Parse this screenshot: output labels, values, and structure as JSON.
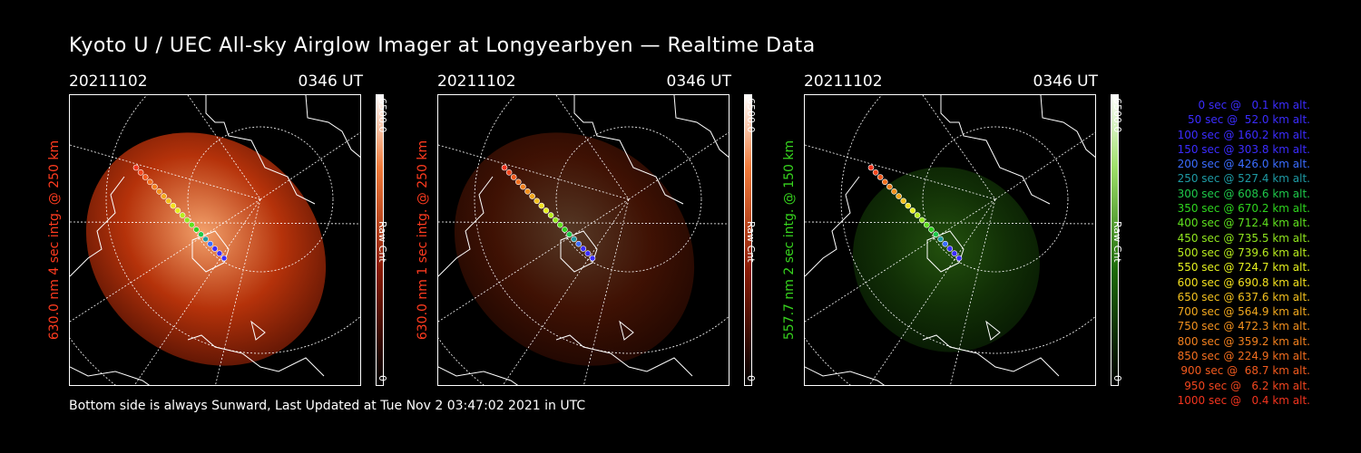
{
  "title": "Kyoto U / UEC All-sky Airglow Imager at Longyearbyen — Realtime Data",
  "footer": "Bottom side is always Sunward, Last Updated at Tue Nov  2 03:47:02 2021 in UTC",
  "panels": [
    {
      "date": "20211102",
      "time": "0346 UT",
      "ylabel": "630.0 nm 4 sec intg. @ 250 km",
      "ylabel_color": "#ff3b1f",
      "colorbar_max": "6500.0",
      "colorbar_min": "0",
      "colorbar_unit": "Raw Cnt",
      "scheme": "red",
      "brightness": "high"
    },
    {
      "date": "20211102",
      "time": "0346 UT",
      "ylabel": "630.0 nm 1 sec intg. @ 250 km",
      "ylabel_color": "#ff3b1f",
      "colorbar_max": "6500.0",
      "colorbar_min": "0",
      "colorbar_unit": "Raw Cnt",
      "scheme": "red",
      "brightness": "low"
    },
    {
      "date": "20211102",
      "time": "0346 UT",
      "ylabel": "557.7 nm 2 sec intg. @ 150 km",
      "ylabel_color": "#37d41e",
      "colorbar_max": "6500.0",
      "colorbar_min": "0",
      "colorbar_unit": "Raw Cnt",
      "scheme": "green",
      "brightness": "medium"
    }
  ],
  "legend": [
    {
      "text": "0 sec @   0.1 km alt.",
      "color": "#3b2cff"
    },
    {
      "text": "50 sec @  52.0 km alt.",
      "color": "#3b2cff"
    },
    {
      "text": "100 sec @ 160.2 km alt.",
      "color": "#3b2cff"
    },
    {
      "text": "150 sec @ 303.8 km alt.",
      "color": "#3b2cff"
    },
    {
      "text": "200 sec @ 426.0 km alt.",
      "color": "#3a6cff"
    },
    {
      "text": "250 sec @ 527.4 km alt.",
      "color": "#1e9aa4"
    },
    {
      "text": "300 sec @ 608.6 km alt.",
      "color": "#1ec84a"
    },
    {
      "text": "350 sec @ 670.2 km alt.",
      "color": "#2ed41e"
    },
    {
      "text": "400 sec @ 712.4 km alt.",
      "color": "#5fe01e"
    },
    {
      "text": "450 sec @ 735.5 km alt.",
      "color": "#8fe61e"
    },
    {
      "text": "500 sec @ 739.6 km alt.",
      "color": "#b8ec1e"
    },
    {
      "text": "550 sec @ 724.7 km alt.",
      "color": "#e4f01e"
    },
    {
      "text": "600 sec @ 690.8 km alt.",
      "color": "#f2e01e"
    },
    {
      "text": "650 sec @ 637.6 km alt.",
      "color": "#f2c01e"
    },
    {
      "text": "700 sec @ 564.9 km alt.",
      "color": "#f2a81e"
    },
    {
      "text": "750 sec @ 472.3 km alt.",
      "color": "#f2901e"
    },
    {
      "text": "800 sec @ 359.2 km alt.",
      "color": "#f2801e"
    },
    {
      "text": "850 sec @ 224.9 km alt.",
      "color": "#f26e1e"
    },
    {
      "text": "900 sec @  68.7 km alt.",
      "color": "#f25a1e"
    },
    {
      "text": "950 sec @   6.2 km alt.",
      "color": "#f2461e"
    },
    {
      "text": "1000 sec @   0.4 km alt.",
      "color": "#f2341e"
    }
  ]
}
